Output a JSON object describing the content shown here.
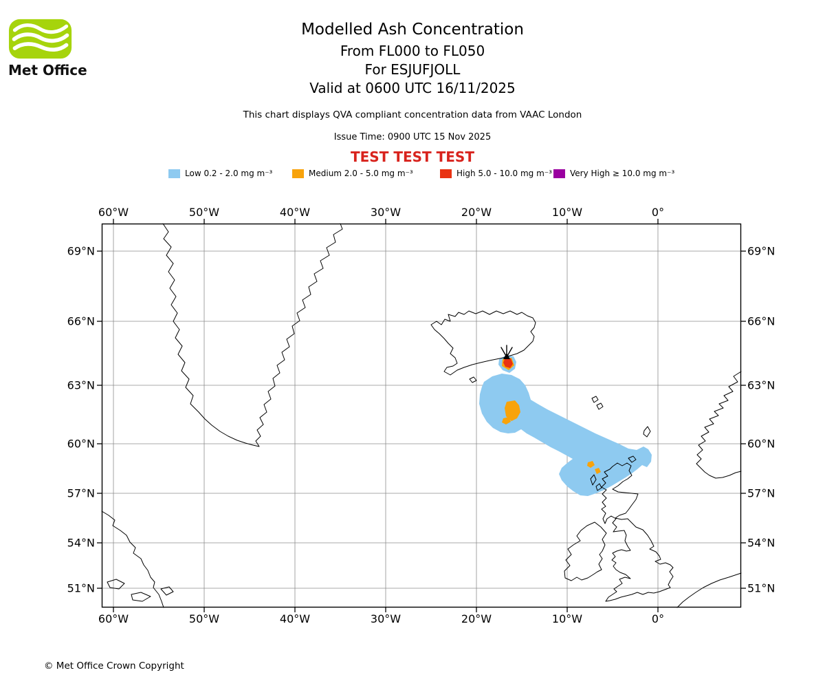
{
  "logo": {
    "brand": "Met Office",
    "green": "#a6d40c"
  },
  "header": {
    "title": "Modelled Ash Concentration",
    "subtitle1": "From FL000 to FL050",
    "subtitle2": "For ESJUFJOLL",
    "subtitle3": "Valid at 0600 UTC 16/11/2025",
    "note": "This chart displays QVA compliant concentration data from VAAC London",
    "issue_time": "Issue Time: 0900 UTC 15 Nov 2025",
    "test_banner": "TEST TEST TEST",
    "test_color": "#d8231d"
  },
  "legend": {
    "items": [
      {
        "name": "low",
        "label": "Low 0.2 - 2.0 mg m⁻³",
        "color": "#8ecaf0"
      },
      {
        "name": "medium",
        "label": "Medium 2.0 - 5.0 mg m⁻³",
        "color": "#f8a30b"
      },
      {
        "name": "high",
        "label": "High 5.0 - 10.0 mg m⁻³",
        "color": "#e93212"
      },
      {
        "name": "very-high",
        "label": "Very High  ≥  10.0 mg m⁻³",
        "color": "#9a00a0"
      }
    ]
  },
  "map": {
    "lon_labels": [
      "60°W",
      "50°W",
      "40°W",
      "30°W",
      "20°W",
      "10°W",
      "0°"
    ],
    "lat_labels": [
      "69°N",
      "66°N",
      "63°N",
      "60°N",
      "57°N",
      "54°N",
      "51°N"
    ],
    "volcano_name": "ESJUFJOLL"
  },
  "footer": {
    "copyright": "© Met Office Crown Copyright"
  }
}
